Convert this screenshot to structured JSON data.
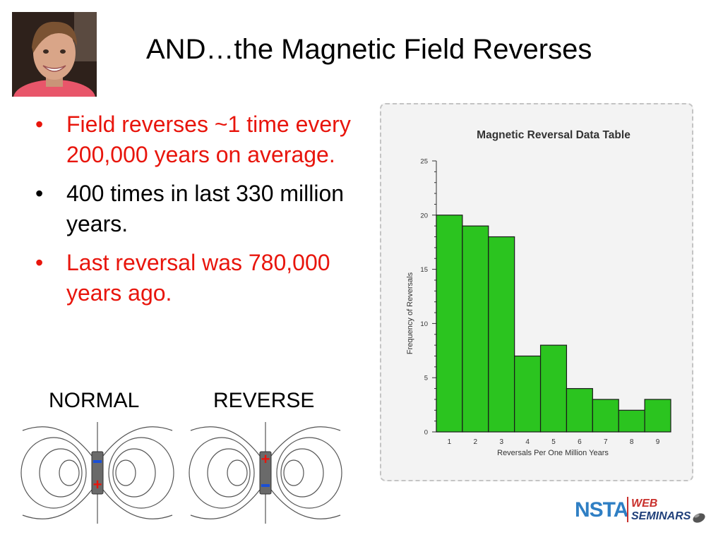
{
  "slide": {
    "title": "AND…the Magnetic Field Reverses"
  },
  "bullets": [
    {
      "text": "Field reverses ~1 time every 200,000 years on average.",
      "color": "#e8150c"
    },
    {
      "text": "400 times in last 330 million years.",
      "color": "#000000"
    },
    {
      "text": "Last reversal was 780,000 years ago.",
      "color": "#e8150c"
    }
  ],
  "bullet_symbol": "•",
  "magnet_diagrams": {
    "normal_label": "NORMAL",
    "reverse_label": "REVERSE",
    "plus_sign": "+",
    "minus_sign": "-"
  },
  "logo": {
    "brand": "NSTA",
    "line1": "WEB",
    "line2": "SEMINARS"
  },
  "chart_data": {
    "type": "bar",
    "title": "Magnetic Reversal Data Table",
    "xlabel": "Reversals Per One Million Years",
    "ylabel": "Frequency of Reversals",
    "categories": [
      "1",
      "2",
      "3",
      "4",
      "5",
      "6",
      "7",
      "8",
      "9"
    ],
    "values": [
      20,
      19,
      18,
      7,
      8,
      4,
      3,
      2,
      3
    ],
    "ylim": [
      0,
      25
    ],
    "yticks": [
      0,
      5,
      10,
      15,
      20,
      25
    ],
    "bar_color": "#2bc41f",
    "grid": false
  }
}
